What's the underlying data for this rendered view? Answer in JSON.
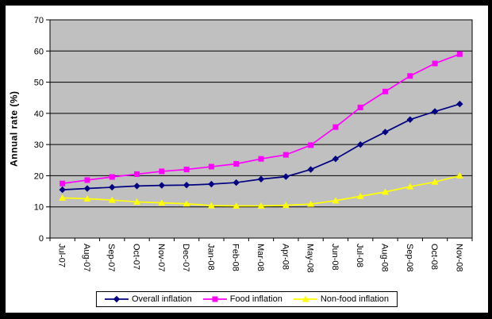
{
  "window": {
    "background": "#ffffff",
    "frame_color": "#000000"
  },
  "chart_data": {
    "type": "line",
    "title": "",
    "xlabel": "",
    "ylabel": "Annual rate (%)",
    "ylim": [
      0,
      70
    ],
    "yticks": [
      0,
      10,
      20,
      30,
      40,
      50,
      60,
      70
    ],
    "grid": true,
    "plot_background": "#c0c0c0",
    "gridline_color": "#000000",
    "legend_position": "bottom",
    "x_label_rotation": "vertical-down",
    "categories": [
      "Jul-07",
      "Aug-07",
      "Sep-07",
      "Oct-07",
      "Nov-07",
      "Dec-07",
      "Jan-08",
      "Feb-08",
      "Mar-08",
      "Apr-08",
      "May-08",
      "Jun-08",
      "Jul-08",
      "Aug-08",
      "Sep-08",
      "Oct-08",
      "Nov-08"
    ],
    "series": [
      {
        "name": "Overall inflation",
        "color": "#000080",
        "marker": "diamond",
        "values": [
          15.5,
          15.9,
          16.3,
          16.7,
          16.9,
          17.0,
          17.3,
          17.8,
          18.9,
          19.7,
          22.0,
          25.4,
          30.0,
          34.0,
          38.0,
          40.6,
          43.0
        ]
      },
      {
        "name": "Food inflation",
        "color": "#ff00ff",
        "marker": "square",
        "values": [
          17.5,
          18.6,
          19.6,
          20.5,
          21.4,
          22.0,
          22.9,
          23.8,
          25.4,
          26.7,
          29.8,
          35.6,
          41.9,
          47.0,
          52.0,
          56.0,
          59.0
        ]
      },
      {
        "name": "Non-food inflation",
        "color": "#ffff00",
        "marker": "triangle",
        "values": [
          12.9,
          12.6,
          12.2,
          11.6,
          11.3,
          11.0,
          10.4,
          10.3,
          10.3,
          10.5,
          10.9,
          12.0,
          13.4,
          14.8,
          16.5,
          18.0,
          20.0
        ]
      }
    ]
  }
}
